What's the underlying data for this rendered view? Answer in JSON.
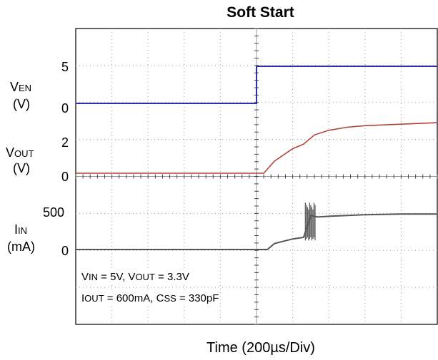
{
  "title": "Soft Start",
  "x_axis_label": "Time (200µs/Div)",
  "annotations": {
    "line1": {
      "v_in_main": "V",
      "v_in_sub": "IN",
      "v_in_val": " = 5V, ",
      "v_out_main": "V",
      "v_out_sub": "OUT",
      "v_out_val": " = 3.3V"
    },
    "line2": {
      "i_out_main": "I",
      "i_out_sub": "OUT",
      "i_out_val": " = 600mA, ",
      "c_ss_main": "C",
      "c_ss_sub": "SS",
      "c_ss_val": " = 330pF"
    }
  },
  "channel_labels": {
    "ven": {
      "main": "V",
      "sub": "EN",
      "unit": "(V)",
      "ticks": [
        "5",
        "0"
      ]
    },
    "vout": {
      "main": "V",
      "sub": "OUT",
      "unit": "(V)",
      "ticks": [
        "2",
        "0"
      ]
    },
    "iin": {
      "main": "I",
      "sub": "IN",
      "unit": "(mA)",
      "ticks": [
        "500",
        "0"
      ]
    }
  },
  "colors": {
    "ven": "#2b2fa8",
    "vout": "#b0443a",
    "iin": "#555555",
    "grid": "#999999"
  },
  "chart_data": {
    "type": "line",
    "title": "Soft Start",
    "xlabel": "Time (200µs/Div)",
    "x_units": "divisions (200µs/div)",
    "x_range": [
      0,
      10
    ],
    "grid": true,
    "step_time_div": 5,
    "series": [
      {
        "name": "VEN",
        "unit": "V",
        "x": [
          0,
          5,
          5,
          10
        ],
        "y": [
          0,
          0,
          5,
          5
        ]
      },
      {
        "name": "VOUT",
        "unit": "V",
        "x": [
          0,
          5.2,
          5.5,
          6.0,
          6.3,
          6.6,
          7.0,
          7.5,
          8.0,
          9.0,
          10
        ],
        "y": [
          0,
          0,
          0.8,
          1.6,
          1.9,
          2.5,
          2.8,
          3.0,
          3.1,
          3.2,
          3.3
        ]
      },
      {
        "name": "IIN",
        "unit": "mA",
        "x": [
          0,
          5.3,
          5.5,
          6.0,
          6.3,
          6.4,
          6.5,
          6.7,
          7.0,
          8.0,
          9.0,
          10
        ],
        "y": [
          0,
          0,
          80,
          140,
          160,
          300,
          450,
          430,
          440,
          460,
          470,
          470
        ]
      }
    ]
  }
}
